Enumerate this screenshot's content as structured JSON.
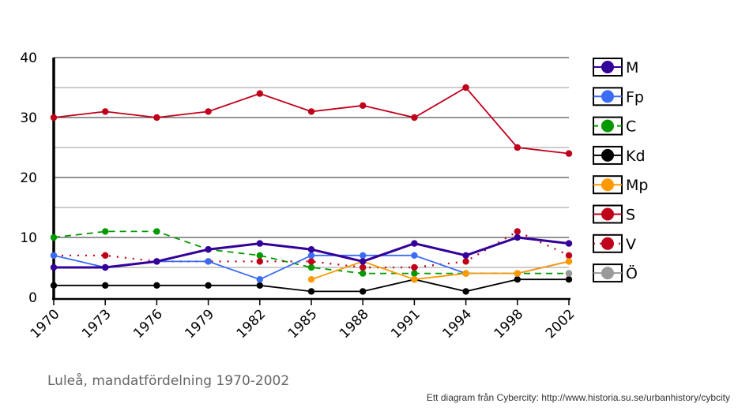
{
  "chart_data": {
    "type": "line",
    "title": "Luleå, mandatfördelning 1970-2002",
    "credit": "Ett diagram från Cybercity: http://www.historia.su.se/urbanhistory/cybcity",
    "xlabel": "",
    "ylabel": "",
    "categories": [
      "1970",
      "1973",
      "1976",
      "1979",
      "1982",
      "1985",
      "1988",
      "1991",
      "1994",
      "1998",
      "2002"
    ],
    "ylim": [
      0,
      40
    ],
    "yticks": [
      0,
      10,
      20,
      30,
      40
    ],
    "grid": true,
    "legend": "right",
    "series": [
      {
        "name": "S",
        "color": "#c0001a",
        "style": "solid",
        "values": [
          30,
          31,
          30,
          31,
          34,
          31,
          32,
          30,
          35,
          25,
          24
        ]
      },
      {
        "name": "C",
        "color": "#009900",
        "style": "dashed",
        "values": [
          10,
          11,
          11,
          8,
          7,
          5,
          4,
          4,
          4,
          4,
          4
        ]
      },
      {
        "name": "Kd",
        "color": "#000000",
        "style": "solid",
        "values": [
          2,
          2,
          2,
          2,
          2,
          1,
          1,
          3,
          1,
          3,
          3
        ]
      },
      {
        "name": "V",
        "color": "#c0001a",
        "style": "dotted",
        "values": [
          7,
          7,
          6,
          6,
          6,
          6,
          5,
          5,
          6,
          11,
          7
        ]
      },
      {
        "name": "Fp",
        "color": "#3b6cf5",
        "style": "solid",
        "values": [
          7,
          5,
          6,
          6,
          3,
          7,
          7,
          7,
          4,
          4,
          6
        ]
      },
      {
        "name": "Mp",
        "color": "#ff9900",
        "style": "solid",
        "values": [
          null,
          null,
          null,
          null,
          null,
          3,
          6,
          3,
          4,
          4,
          6
        ]
      },
      {
        "name": "M",
        "color": "#330099",
        "style": "thick",
        "values": [
          5,
          5,
          6,
          8,
          9,
          8,
          6,
          9,
          7,
          10,
          9
        ]
      },
      {
        "name": "Ö",
        "color": "#999999",
        "style": "solid",
        "values": [
          null,
          null,
          null,
          null,
          null,
          null,
          null,
          null,
          null,
          null,
          4
        ]
      }
    ],
    "legend_order": [
      "M",
      "Fp",
      "C",
      "Kd",
      "Mp",
      "S",
      "V",
      "Ö"
    ]
  }
}
